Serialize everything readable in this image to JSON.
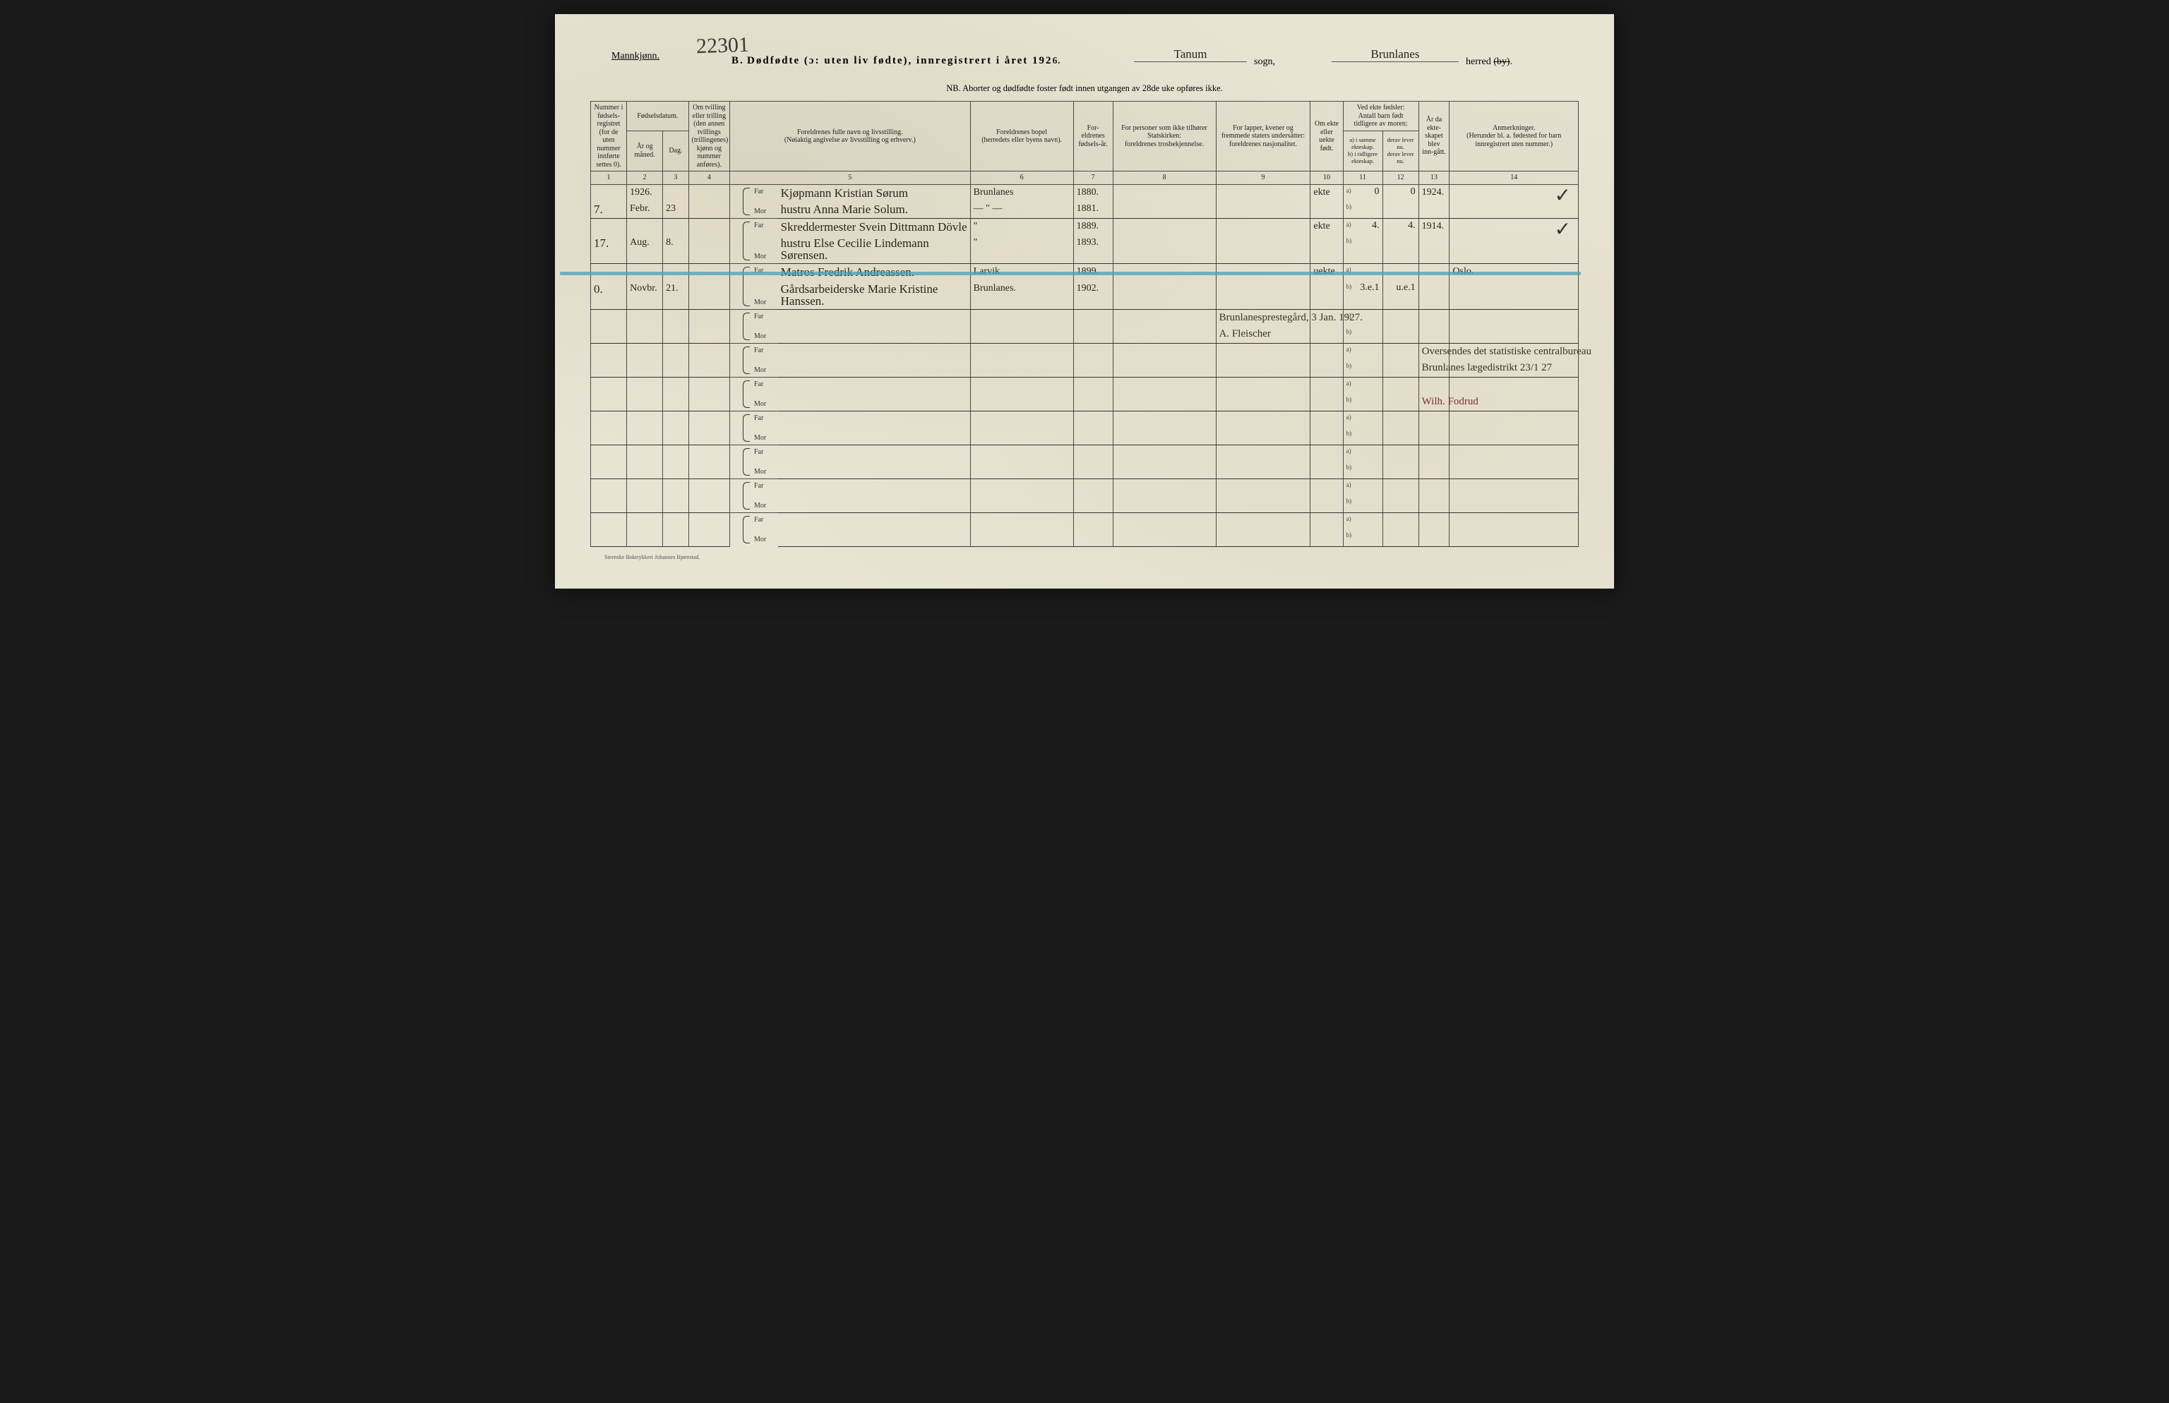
{
  "page": {
    "background_color": "#e8e4d4",
    "ink_color": "#2a241c",
    "rule_color": "#4a4a4a",
    "highlight_color": "#4aa0b8"
  },
  "header": {
    "gender": "Mannkjønn.",
    "archive_number": "22301",
    "section_letter": "B.",
    "title_main": "Dødfødte (ɔ: uten liv fødte), innregistrert i året 192",
    "year_digit": "6.",
    "sogn_value": "Tanum",
    "sogn_label": "sogn,",
    "herred_value": "Brunlanes",
    "herred_label_prefix": "herred ",
    "herred_label_struck": "(by)",
    "herred_label_suffix": ".",
    "nb_line": "NB. Aborter og dødfødte foster født innen utgangen av 28de uke opføres ikke."
  },
  "columns": {
    "c1": "Nummer i fødsels-registret (for de uten nummer innførte settes 0).",
    "c2_top": "Fødselsdatum.",
    "c2": "År og måned.",
    "c3": "Dag.",
    "c4": "Om tvilling eller trilling (den annen tvillings (trillingenes) kjønn og nummer anføres).",
    "c5": "Foreldrenes fulle navn og livsstilling.\n(Nøiaktig angivelse av livsstilling og erhverv.)",
    "c6": "Foreldrenes bopel\n(herredets eller byens navn).",
    "c7": "For-eldrenes fødsels-år.",
    "c8": "For personer som ikke tilhører Statskirken:\nforeldrenes trosbekjennelse.",
    "c9": "For lapper, kvener og fremmede staters undersåtter:\nforeldrenes nasjonalitet.",
    "c10": "Om ekte eller uekte født.",
    "c11_12_top": "Ved ekte fødsler:\nAntall barn født tidligere av moren:",
    "c11": "a) i samme ekteskap.\nb) i tidligere ekteskap.",
    "c12": "derav lever nu.\nderav lever nu.",
    "c13": "År da ekte-skapet blev inn-gått.",
    "c14": "Anmerkninger.\n(Herunder bl. a. fødested for barn innregistrert uten nummer.)",
    "far": "Far",
    "mor": "Mor",
    "a_label": "a)",
    "b_label": "b)"
  },
  "colnums": [
    "1",
    "2",
    "3",
    "4",
    "5",
    "6",
    "7",
    "8",
    "9",
    "10",
    "11",
    "12",
    "13",
    "14"
  ],
  "rows": [
    {
      "num": "7.",
      "year_month_top": "1926.",
      "year_month_bot": "Febr.",
      "day": "23",
      "far": "Kjøpmann Kristian Sørum",
      "mor": "hustru Anna Marie Solum.",
      "bopel_far": "Brunlanes",
      "bopel_mor": "— \" —",
      "fy_far": "1880.",
      "fy_mor": "1881.",
      "ekte": "ekte",
      "c11a": "0",
      "c12a": "0",
      "c13": "1924.",
      "remark": "",
      "check": "✓"
    },
    {
      "num": "17.",
      "year_month_top": "",
      "year_month_bot": "Aug.",
      "day": "8.",
      "far": "Skreddermester Svein Dittmann Dövle",
      "mor": "hustru Else Cecilie Lindemann Sørensen.",
      "bopel_far": "\"",
      "bopel_mor": "\"",
      "fy_far": "1889.",
      "fy_mor": "1893.",
      "ekte": "ekte",
      "c11a": "4.",
      "c12a": "4.",
      "c13": "1914.",
      "remark": "",
      "check": "✓"
    },
    {
      "num": "0.",
      "year_month_top": "",
      "year_month_bot": "Novbr.",
      "day": "21.",
      "far": "Matros Fredrik Andreassen.",
      "mor": "Gårdsarbeiderske Marie Kristine Hanssen.",
      "bopel_far": "Larvik",
      "bopel_mor": "Brunlanes.",
      "fy_far": "1899.",
      "fy_mor": "1902.",
      "ekte": "uekte",
      "c11a": "",
      "c12a": "",
      "c11b": "3.e.1",
      "c12b": "u.e.1",
      "c13": "",
      "remark": "Oslo.",
      "struck": true
    }
  ],
  "annotations": {
    "sign1": "Brunlanesprestegård, 3 Jan. 1927.",
    "sign2": "A. Fleischer",
    "note1": "Oversendes det statistiske centralbureau",
    "note2": "Brunlanes lægedistrikt 23/1 27",
    "sign3": "Wilh. Fodrud"
  },
  "footer": {
    "printer": "Steenske Boktrykkeri Johannes Bjørnstad."
  }
}
